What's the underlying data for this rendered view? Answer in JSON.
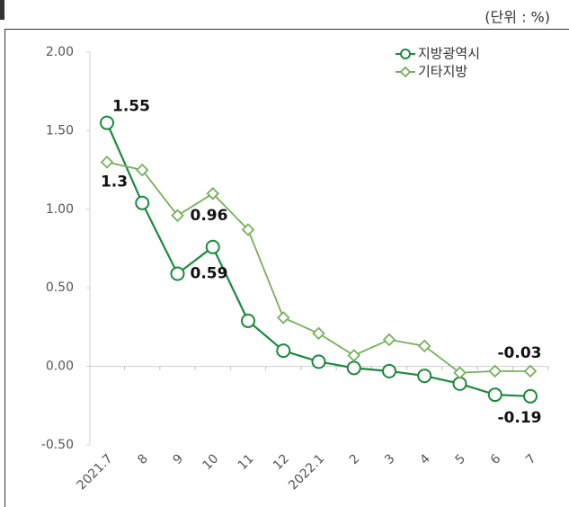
{
  "chart_data": {
    "type": "line",
    "unit_note": "(단위 : %)",
    "categories": [
      "2021.7",
      "8",
      "9",
      "10",
      "11",
      "12",
      "2022.1",
      "2",
      "3",
      "4",
      "5",
      "6",
      "7"
    ],
    "series": [
      {
        "name": "지방광역시",
        "color": "#1b8a3c",
        "marker": "circle",
        "values": [
          1.55,
          1.04,
          0.59,
          0.76,
          0.29,
          0.1,
          0.03,
          -0.01,
          -0.03,
          -0.06,
          -0.11,
          -0.18,
          -0.19
        ],
        "value_labels": [
          "1.55",
          null,
          "0.59",
          null,
          null,
          null,
          null,
          null,
          null,
          null,
          null,
          null,
          "-0.19"
        ]
      },
      {
        "name": "기타지방",
        "color": "#77b05a",
        "marker": "diamond",
        "values": [
          1.3,
          1.25,
          0.96,
          1.1,
          0.87,
          0.31,
          0.21,
          0.07,
          0.17,
          0.13,
          -0.04,
          -0.03,
          -0.03
        ],
        "value_labels": [
          "1.3",
          null,
          "0.96",
          null,
          null,
          null,
          null,
          null,
          null,
          null,
          null,
          null,
          "-0.03"
        ]
      }
    ],
    "ylim": [
      -0.5,
      2.0
    ],
    "yticks": [
      {
        "value": -0.5,
        "label": "-0.50"
      },
      {
        "value": 0,
        "label": "0.00"
      },
      {
        "value": 0.5,
        "label": "0.50"
      },
      {
        "value": 1.0,
        "label": "1.00"
      },
      {
        "value": 1.5,
        "label": "1.50"
      },
      {
        "value": 2.0,
        "label": "2.00"
      }
    ],
    "legend": "top-right"
  }
}
